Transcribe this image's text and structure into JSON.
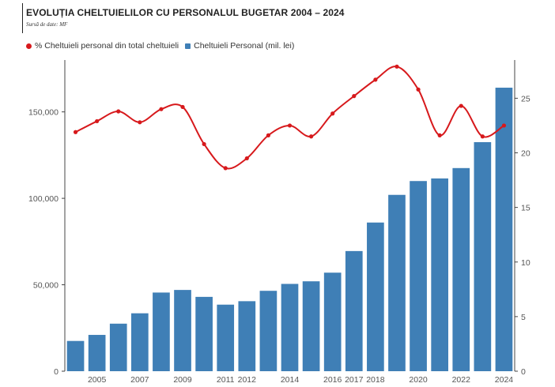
{
  "title": "EVOLUȚIA CHELTUIELILOR CU PERSONALUL BUGETAR 2004 – 2024",
  "source": "Sursă de date: MF",
  "colors": {
    "bar": "#3f7fb6",
    "line": "#d7191c"
  },
  "legend": [
    {
      "label": "% Cheltuieli personal din total cheltuieli",
      "shape": "dot",
      "color": "#d7191c"
    },
    {
      "label": "Cheltuieli Personal (mil. lei)",
      "shape": "square",
      "color": "#3f7fb6"
    }
  ],
  "chart_data": {
    "type": "bar",
    "categories": [
      2004,
      2005,
      2006,
      2007,
      2008,
      2009,
      2010,
      2011,
      2012,
      2013,
      2014,
      2015,
      2016,
      2017,
      2018,
      2019,
      2020,
      2021,
      2022,
      2023,
      2024
    ],
    "x_tick_labels": [
      "2005",
      "2007",
      "2009",
      "2011",
      "2012",
      "2014",
      "2016",
      "2017",
      "2018",
      "2020",
      "2022",
      "2024"
    ],
    "series": [
      {
        "name": "Cheltuieli Personal (mil. lei)",
        "type": "bar",
        "axis": "left",
        "values": [
          17500,
          21000,
          27500,
          33500,
          45500,
          47000,
          43000,
          38500,
          40500,
          46500,
          50500,
          52000,
          57000,
          69500,
          86000,
          102000,
          110000,
          111500,
          117500,
          132500,
          164000
        ]
      },
      {
        "name": "% Cheltuieli personal din total cheltuieli",
        "type": "line",
        "axis": "right",
        "values": [
          21.9,
          22.9,
          23.8,
          22.8,
          24.0,
          24.2,
          20.8,
          18.6,
          19.5,
          21.6,
          22.5,
          21.5,
          23.6,
          25.2,
          26.7,
          27.9,
          25.8,
          21.6,
          24.3,
          21.5,
          22.5
        ]
      }
    ],
    "left_axis": {
      "ticks": [
        0,
        50000,
        100000,
        150000
      ],
      "tick_labels": [
        "0",
        "50,000",
        "100,000",
        "150,000"
      ],
      "ylim": [
        0,
        180000
      ]
    },
    "right_axis": {
      "ticks": [
        0,
        5,
        10,
        15,
        20,
        25
      ],
      "tick_labels": [
        "0",
        "5",
        "10",
        "15",
        "20",
        "25"
      ],
      "ylim": [
        0,
        28.5
      ]
    },
    "grid": false,
    "legend_position": "top-left"
  }
}
